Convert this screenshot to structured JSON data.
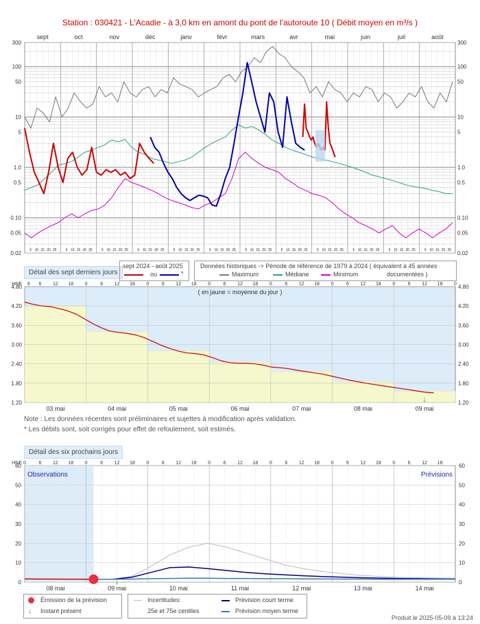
{
  "header": {
    "title": "Station : 030421      -  L'Acadie - à 3,0 km en amont du pont de l'autoroute 10   ( Débit moyen en m³/s )"
  },
  "chart_data": [
    {
      "type": "line",
      "name": "annual-hydrograph",
      "y_scale": "log",
      "ylim": [
        0.02,
        300
      ],
      "yticks": [
        "300",
        "100",
        "50",
        "10",
        "5",
        "1.0",
        "0.5",
        "0.10",
        "0.05",
        "0.02"
      ],
      "ytick_values": [
        300,
        100,
        50,
        10,
        5,
        1.0,
        0.5,
        0.1,
        0.05,
        0.02
      ],
      "month_labels": [
        "sept",
        "oct",
        "nov",
        "déc",
        "janv",
        "févr",
        "mars",
        "avr",
        "mai",
        "juin",
        "juil",
        "août"
      ],
      "day_tick_labels": [
        "5",
        "10",
        "15",
        "20",
        "25"
      ],
      "series": [
        {
          "name": "Maximum",
          "color": "#777777",
          "values": [
            10,
            6,
            15,
            12,
            8,
            25,
            10,
            15,
            30,
            20,
            15,
            18,
            40,
            25,
            30,
            20,
            50,
            30,
            25,
            35,
            40,
            25,
            35,
            30,
            60,
            45,
            40,
            35,
            25,
            30,
            35,
            40,
            60,
            70,
            50,
            80,
            100,
            150,
            120,
            200,
            250,
            180,
            150,
            100,
            80,
            60,
            30,
            40,
            25,
            50,
            35,
            30,
            20,
            30,
            25,
            40,
            35,
            20,
            30,
            25,
            15,
            20,
            30,
            25,
            40,
            20,
            15,
            30,
            20,
            50
          ]
        },
        {
          "name": "Médiane",
          "color": "#2a9d8f",
          "values": [
            0.35,
            0.4,
            0.45,
            0.6,
            0.8,
            1.1,
            1.2,
            1.3,
            1.6,
            2.0,
            2.2,
            2.5,
            2.8,
            3.5,
            3.2,
            3.6,
            2.5,
            2.0,
            1.8,
            1.5,
            1.4,
            1.3,
            1.2,
            1.3,
            1.4,
            1.6,
            2.0,
            2.5,
            3.0,
            3.5,
            4.0,
            5.5,
            7.0,
            6.0,
            6.5,
            5.5,
            4.5,
            3.5,
            3.0,
            2.5,
            2.2,
            2.0,
            1.8,
            1.6,
            1.5,
            1.4,
            1.3,
            1.2,
            1.1,
            1.0,
            0.9,
            0.8,
            0.7,
            0.65,
            0.6,
            0.55,
            0.5,
            0.45,
            0.42,
            0.4,
            0.38,
            0.35,
            0.33,
            0.3,
            0.3
          ]
        },
        {
          "name": "Minimum",
          "color": "#cc00cc",
          "values": [
            0.05,
            0.04,
            0.05,
            0.06,
            0.07,
            0.08,
            0.1,
            0.12,
            0.1,
            0.12,
            0.14,
            0.15,
            0.18,
            0.25,
            0.4,
            0.6,
            0.5,
            0.45,
            0.4,
            0.35,
            0.3,
            0.25,
            0.22,
            0.2,
            0.18,
            0.16,
            0.15,
            0.18,
            0.2,
            0.25,
            0.3,
            0.6,
            1.5,
            2.0,
            1.5,
            1.2,
            1.0,
            0.9,
            0.8,
            0.6,
            0.5,
            0.4,
            0.35,
            0.3,
            0.28,
            0.25,
            0.2,
            0.15,
            0.12,
            0.1,
            0.08,
            0.07,
            0.06,
            0.05,
            0.06,
            0.07,
            0.05,
            0.04,
            0.05,
            0.06,
            0.05,
            0.04,
            0.05,
            0.06,
            0.08
          ]
        },
        {
          "name": "sept 2024 - août 2025",
          "color": "#cc0000",
          "values": [
            6,
            2,
            0.8,
            0.5,
            0.3,
            0.8,
            3,
            1.0,
            0.5,
            1.5,
            2,
            1.0,
            0.7,
            0.9,
            2.5,
            0.8,
            0.7,
            0.9,
            0.8,
            0.9,
            0.7,
            0.8,
            0.6,
            0.7,
            3,
            2,
            1.5,
            1.2,
            4,
            18,
            6,
            5,
            4,
            3.5,
            4,
            3,
            2.5,
            3,
            2.5,
            2.2,
            2.5,
            2.2,
            20,
            6,
            3,
            2.5,
            2,
            1.6
          ]
        },
        {
          "name": "* (corrigés ou estimés)",
          "color": "#0000aa",
          "values": [
            4,
            2.5,
            2,
            1.2,
            0.8,
            0.6,
            0.4,
            0.3,
            0.25,
            0.22,
            0.25,
            0.28,
            0.27,
            0.25,
            0.18,
            0.17,
            0.3,
            0.6,
            1.0,
            3,
            10,
            30,
            120,
            50,
            20,
            10,
            5,
            30,
            20,
            5,
            2.5,
            25,
            8,
            3,
            2.5,
            2.2
          ]
        }
      ]
    },
    {
      "type": "line",
      "name": "seven-day-detail",
      "xlabel_time_zone": "HNE",
      "ylim": [
        1.2,
        4.8
      ],
      "yticks": [
        "4.80",
        "4.20",
        "3.60",
        "3.00",
        "2.40",
        "1.80",
        "1.20"
      ],
      "ytick_values": [
        4.8,
        4.2,
        3.6,
        3.0,
        2.4,
        1.8,
        1.2
      ],
      "hour_ticks": [
        "6",
        "12",
        "18",
        "0"
      ],
      "days": [
        "03 mai",
        "04 mai",
        "05 mai",
        "06 mai",
        "07 mai",
        "08 mai",
        "09 mai"
      ],
      "daily_mean": [
        4.2,
        3.4,
        2.8,
        2.45,
        2.15,
        1.85,
        1.55
      ],
      "series": [
        {
          "name": "Débit",
          "color": "#cc0000",
          "values": [
            4.32,
            4.25,
            4.2,
            4.18,
            4.12,
            4.05,
            3.95,
            3.8,
            3.65,
            3.52,
            3.42,
            3.38,
            3.35,
            3.3,
            3.22,
            3.1,
            2.98,
            2.88,
            2.8,
            2.74,
            2.72,
            2.68,
            2.6,
            2.5,
            2.44,
            2.42,
            2.42,
            2.4,
            2.36,
            2.3,
            2.28,
            2.25,
            2.2,
            2.16,
            2.12,
            2.08,
            2.02,
            1.96,
            1.9,
            1.85,
            1.8,
            1.76,
            1.72,
            1.68,
            1.64,
            1.6,
            1.56,
            1.52,
            1.5
          ]
        }
      ],
      "annotation": "( en jaune = moyenne du jour )",
      "present_marker_day": "09 mai"
    },
    {
      "type": "line",
      "name": "six-day-forecast",
      "xlabel_time_zone": "HNE",
      "ylim": [
        0,
        60
      ],
      "yticks": [
        "60",
        "50",
        "40",
        "30",
        "20",
        "10",
        "0"
      ],
      "ytick_values": [
        60,
        50,
        40,
        30,
        20,
        10,
        0
      ],
      "days": [
        "08 mai",
        "09 mai",
        "10 mai",
        "11 mai",
        "12 mai",
        "13 mai",
        "14 mai"
      ],
      "observations_label": "Observations",
      "previsions_label": "Prévisions",
      "series": [
        {
          "name": "Observé",
          "color": "#cc0000",
          "values": [
            1.7,
            1.6,
            1.6,
            1.55,
            1.55,
            1.5
          ]
        },
        {
          "name": "Incertitudes: 25e et 75e centiles",
          "color": "#bbbbbb",
          "values": [
            1.5,
            1.5,
            3,
            8,
            14,
            18,
            20,
            18,
            15,
            12,
            9,
            7,
            5.5,
            4.5,
            3.5,
            3,
            2.5,
            2.3,
            2.1,
            2
          ]
        },
        {
          "name": "Prévision court terme",
          "color": "#000080",
          "values": [
            1.5,
            1.5,
            2.5,
            5,
            7.5,
            7.8,
            7,
            6,
            5,
            4.3,
            3.8,
            3.3,
            2.9,
            2.6,
            2.3,
            2.1,
            1.9,
            1.8,
            1.7,
            1.6
          ]
        },
        {
          "name": "Prévision moyen terme",
          "color": "#3377cc",
          "values": [
            1.5,
            1.5,
            1.6,
            1.8,
            1.9,
            2,
            2,
            1.9,
            1.9,
            1.8,
            1.8,
            1.7,
            1.7,
            1.6,
            1.6,
            1.5,
            1.5,
            1.5,
            1.5,
            1.5
          ]
        }
      ]
    }
  ],
  "top_legend": {
    "tab_label": "Détail des sept derniers jours",
    "period_title": "sept 2024 - août 2025",
    "or_label": "ou",
    "star_label": "*",
    "hist_title": "Données historiques -> Période de référence  de 1979 à 2024   ( équivalent à 45 années",
    "max_label": "Maximum",
    "median_label": "Médiane",
    "min_label": "Minimum",
    "documented_label": "documentées )"
  },
  "notes": {
    "line1": "Note : Les données récentes sont préliminaires et sujettes à modification après validation.",
    "line2": "* Les débits sont, soit corrigés pour effet de refoulement, soit estimés."
  },
  "forecast_tab": "Détail des six prochains jours",
  "bottom_legend": {
    "emission": "Émission de la prévision",
    "present": "Instant présent",
    "uncert1": "Incertitudes:",
    "uncert2": "25e et 75e centiles",
    "short_term": "Prévision court terme",
    "mid_term": "Prévision moyen terme"
  },
  "footer": {
    "produced": "Produit le 2025-05-09 à 13:24"
  },
  "colors": {
    "current": "#cc0000",
    "corrected": "#0000aa",
    "max": "#777777",
    "median": "#2a9d8f",
    "min": "#cc00cc",
    "panel_blue": "#dcecf9",
    "daily_mean_yellow": "#f4f8cc"
  }
}
